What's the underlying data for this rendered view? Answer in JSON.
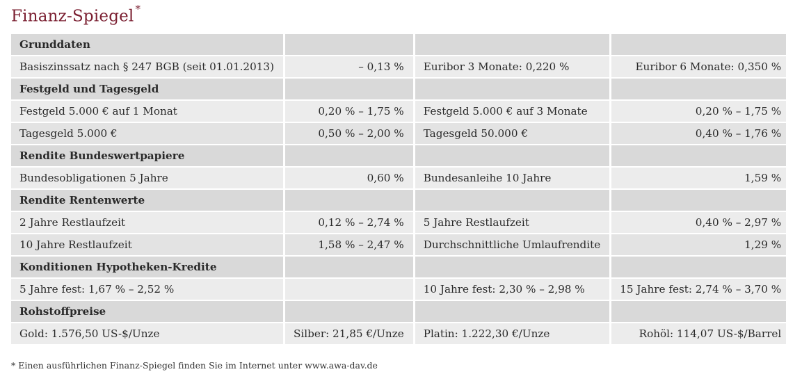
{
  "title": "Finanz-Spiegel",
  "title_mark": "*",
  "sections": [
    {
      "heading": "Grunddaten",
      "rows": [
        [
          "Basiszinssatz nach § 247 BGB (seit 01.01.2013)",
          "– 0,13 %",
          "Euribor 3 Monate: 0,220 %",
          "Euribor 6 Monate: 0,350 %"
        ]
      ]
    },
    {
      "heading": "Festgeld und Tagesgeld",
      "rows": [
        [
          "Festgeld 5.000 € auf 1 Monat",
          "0,20 % – 1,75 %",
          "Festgeld 5.000 € auf 3 Monate",
          "0,20 % – 1,75 %"
        ],
        [
          "Tagesgeld 5.000 €",
          "0,50 % – 2,00 %",
          "Tagesgeld 50.000 €",
          "0,40 % – 1,76 %"
        ]
      ]
    },
    {
      "heading": "Rendite Bundeswertpapiere",
      "rows": [
        [
          "Bundesobligationen 5 Jahre",
          "0,60 %",
          "Bundesanleihe 10 Jahre",
          "1,59 %"
        ]
      ]
    },
    {
      "heading": "Rendite Rentenwerte",
      "rows": [
        [
          "2 Jahre Restlaufzeit",
          "0,12 % – 2,74 %",
          "5 Jahre Restlaufzeit",
          "0,40 % – 2,97 %"
        ],
        [
          "10 Jahre Restlaufzeit",
          "1,58 % – 2,47 %",
          "Durchschnittliche Umlaufrendite",
          "1,29 %"
        ]
      ]
    },
    {
      "heading": "Konditionen Hypotheken-Kredite",
      "rows": [
        [
          "5 Jahre fest: 1,67 % – 2,52 %",
          "",
          "10 Jahre fest: 2,30 % – 2,98 %",
          "15 Jahre fest: 2,74 % – 3,70 %"
        ]
      ]
    },
    {
      "heading": "Rohstoffpreise",
      "rows": [
        [
          "Gold: 1.576,50 US-$/Unze",
          "Silber: 21,85 €/Unze",
          "Platin: 1.222,30 €/Unze",
          "Rohöl: 114,07 US-$/Barrel"
        ]
      ]
    }
  ],
  "footnote": "* Einen ausführlichen Finanz-Spiegel finden Sie im Internet unter www.awa-dav.de",
  "colors": {
    "title": "#7b2032",
    "section_bg": "#d9d9d9",
    "row_bg": "#ececec",
    "row_alt_bg": "#e3e3e3"
  }
}
